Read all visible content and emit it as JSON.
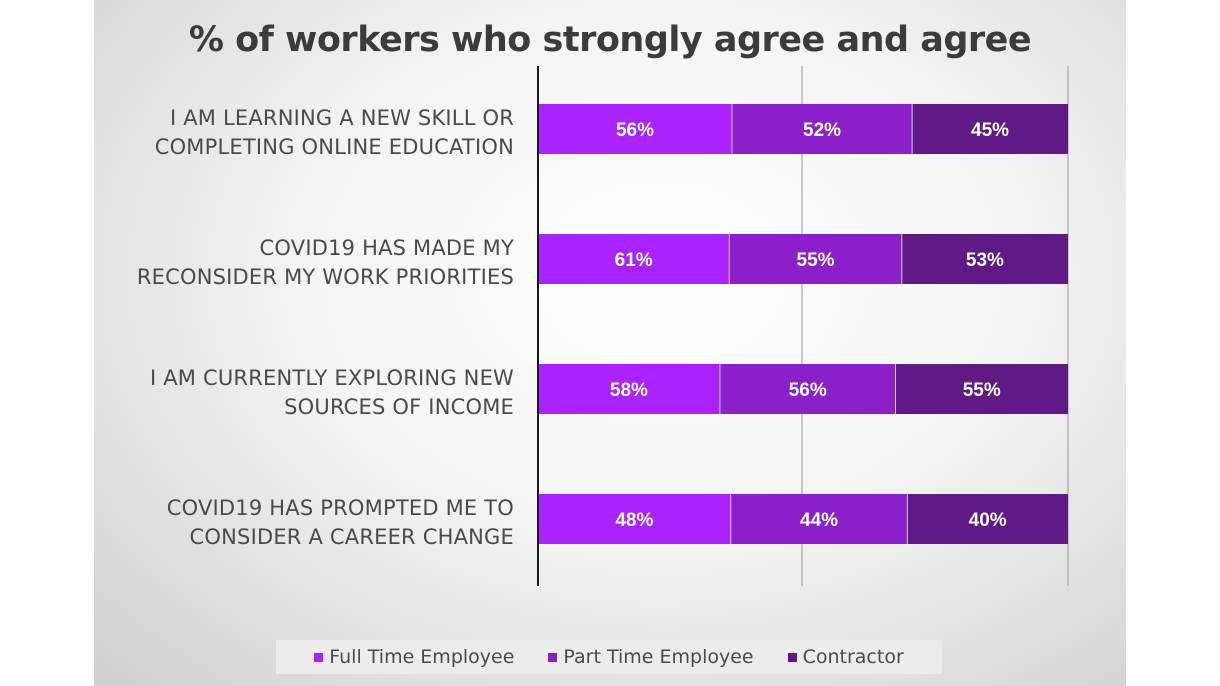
{
  "chart_data": {
    "type": "bar",
    "orientation": "horizontal",
    "stacked": true,
    "title": "% of workers who strongly agree and agree",
    "categories": [
      [
        "I AM LEARNING A NEW SKILL OR",
        "COMPLETING ONLINE EDUCATION"
      ],
      [
        "COVID19 HAS MADE MY",
        "RECONSIDER MY WORK PRIORITIES"
      ],
      [
        "I AM CURRENTLY EXPLORING NEW",
        "SOURCES OF INCOME"
      ],
      [
        "COVID19 HAS PROMPTED ME TO",
        "CONSIDER A CAREER CHANGE"
      ]
    ],
    "series": [
      {
        "name": "Full Time Employee",
        "values": [
          56,
          61,
          58,
          48
        ],
        "labels": [
          "56%",
          "61%",
          "58%",
          "48%"
        ],
        "color": "#aa22ff"
      },
      {
        "name": "Part Time Employee",
        "values": [
          52,
          55,
          56,
          44
        ],
        "labels": [
          "52%",
          "55%",
          "56%",
          "44%"
        ],
        "color": "#8b1fc9"
      },
      {
        "name": "Contractor",
        "values": [
          45,
          53,
          55,
          40
        ],
        "labels": [
          "45%",
          "53%",
          "55%",
          "40%"
        ],
        "color": "#5f1a85"
      }
    ],
    "legend_position": "bottom",
    "grid": true
  }
}
